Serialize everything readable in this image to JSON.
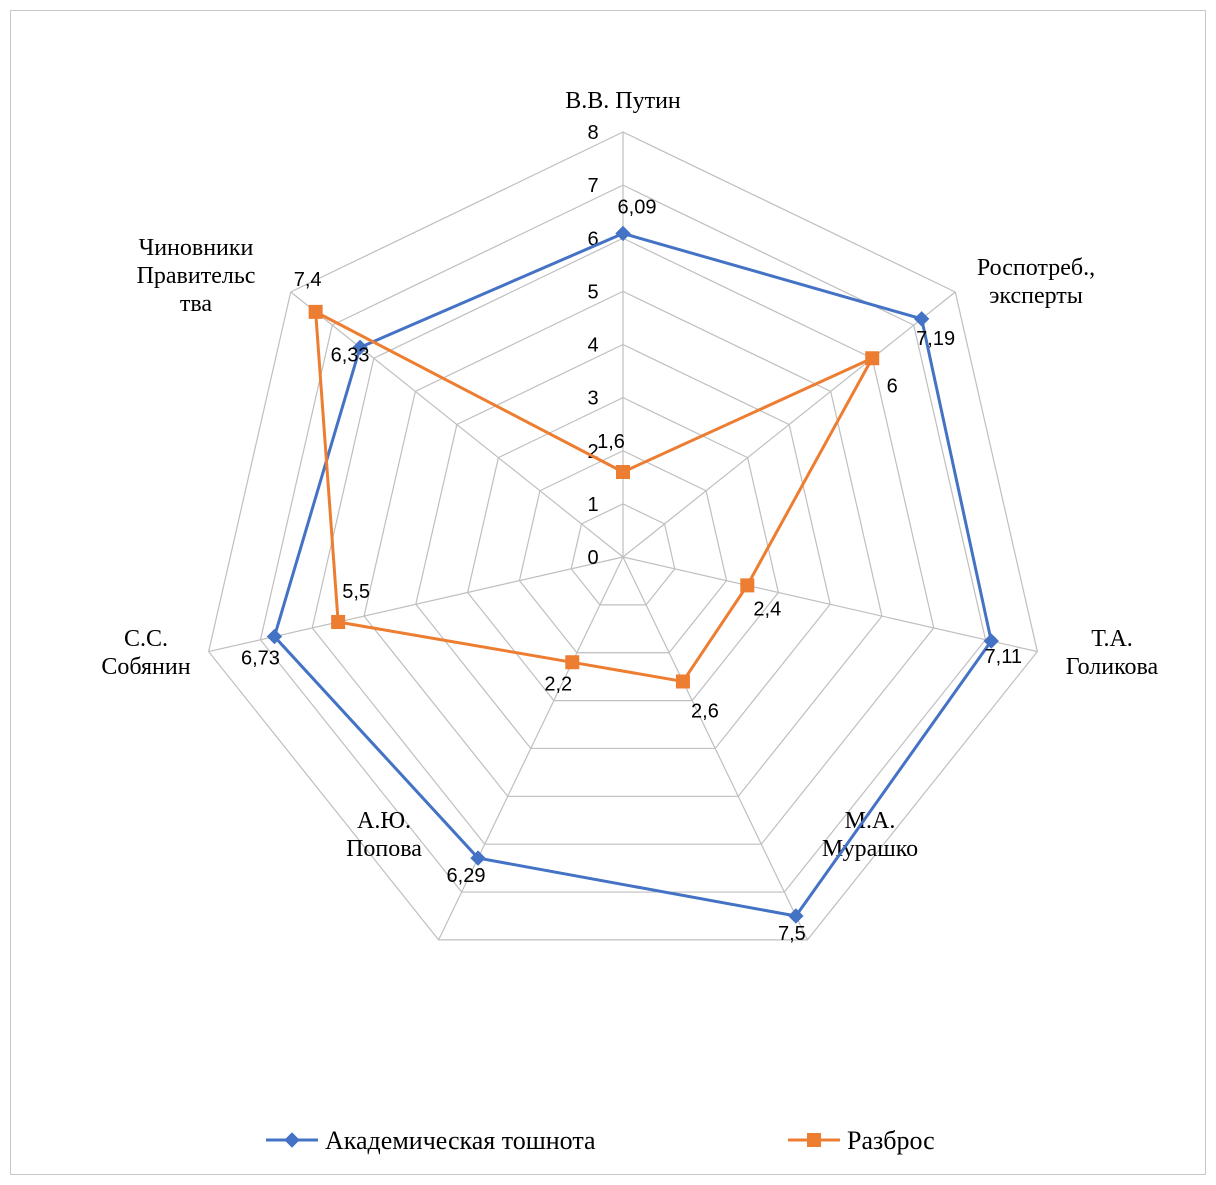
{
  "chart_data": {
    "type": "radar",
    "categories": [
      "В.В. Путин",
      "Роспотреб., эксперты",
      "Т.А. Голикова",
      "М.А. Мурашко",
      "А.Ю. Попова",
      "С.С. Собянин",
      "Чиновники Правительства"
    ],
    "category_label_lines": [
      [
        "В.В. Путин"
      ],
      [
        "Роспотреб.,",
        "эксперты"
      ],
      [
        "Т.А.",
        "Голикова"
      ],
      [
        "М.А.",
        "Мурашко"
      ],
      [
        "А.Ю.",
        "Попова"
      ],
      [
        "С.С.",
        "Собянин"
      ],
      [
        "Чиновники",
        "Правительс",
        "тва"
      ]
    ],
    "rlim": [
      0,
      8
    ],
    "ticks": [
      "0",
      "1",
      "2",
      "3",
      "4",
      "5",
      "6",
      "7",
      "8"
    ],
    "grid": true,
    "legend_position": "bottom",
    "series": [
      {
        "name": "Академическая тошнота",
        "color": "#4472c4",
        "marker": "diamond",
        "values": [
          6.09,
          7.19,
          7.11,
          7.5,
          6.29,
          6.73,
          6.33
        ],
        "labels": [
          "6,09",
          "7,19",
          "7,11",
          "7,5",
          "6,29",
          "6,73",
          "6,33"
        ]
      },
      {
        "name": "Разброс",
        "color": "#ed7d31",
        "marker": "square",
        "values": [
          1.6,
          6,
          2.4,
          2.6,
          2.2,
          5.5,
          7.4
        ],
        "labels": [
          "1,6",
          "6",
          "2,4",
          "2,6",
          "2,2",
          "5,5",
          "7,4"
        ]
      }
    ]
  }
}
